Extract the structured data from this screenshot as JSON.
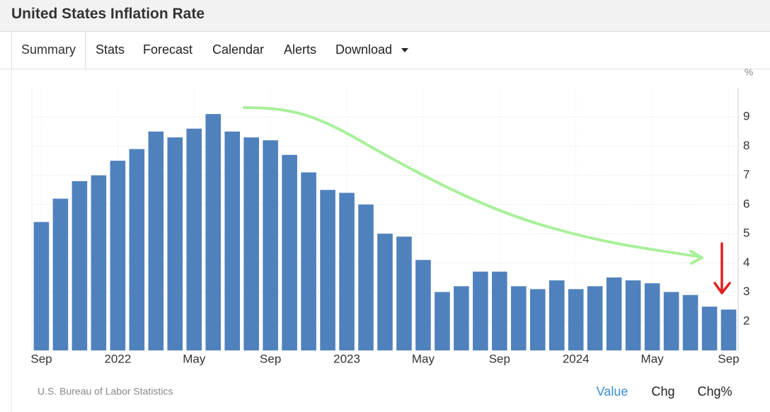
{
  "header": {
    "title": "United States Inflation Rate"
  },
  "tabs": [
    "Summary",
    "Stats",
    "Forecast",
    "Calendar",
    "Alerts",
    "Download"
  ],
  "chart_data": {
    "type": "bar",
    "unit_label": "%",
    "categories": [
      "Sep",
      null,
      null,
      null,
      "2022",
      null,
      null,
      null,
      "May",
      null,
      null,
      null,
      "Sep",
      null,
      null,
      null,
      "2023",
      null,
      null,
      null,
      "May",
      null,
      null,
      null,
      "Sep",
      null,
      null,
      null,
      "2024",
      null,
      null,
      null,
      "May",
      null,
      null,
      null,
      "Sep"
    ],
    "values": [
      5.4,
      6.2,
      6.8,
      7.0,
      7.5,
      7.9,
      8.5,
      8.3,
      8.6,
      9.1,
      8.5,
      8.3,
      8.2,
      7.7,
      7.1,
      6.5,
      6.4,
      6.0,
      5.0,
      4.9,
      4.1,
      3.0,
      3.2,
      3.7,
      3.7,
      3.2,
      3.1,
      3.4,
      3.1,
      3.2,
      3.5,
      3.4,
      3.3,
      3.0,
      2.9,
      2.5,
      2.4
    ],
    "color": "#4f81bd",
    "ylim": [
      1,
      10
    ],
    "yticks": [
      2,
      3,
      4,
      5,
      6,
      7,
      8,
      9
    ],
    "grid": true
  },
  "source": "U.S. Bureau of Labor Statistics",
  "view_options": [
    "Value",
    "Chg",
    "Chg%"
  ]
}
